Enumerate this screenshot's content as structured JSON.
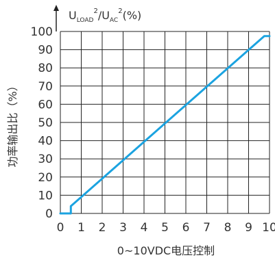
{
  "chart_data": {
    "type": "line",
    "title": "",
    "y_title_main": "功率输出比（%）",
    "y_title_top": {
      "u1": "U",
      "load": "LOAD",
      "sq1": "2",
      "slash_u": "/U",
      "ac": "AC",
      "sq2": "2",
      "pct": "(%)"
    },
    "xlabel": "0~10VDC电压控制",
    "xlim": [
      0,
      10
    ],
    "ylim": [
      0,
      100
    ],
    "x_ticks": [
      "0",
      "1",
      "2",
      "3",
      "4",
      "5",
      "6",
      "7",
      "8",
      "9",
      "10"
    ],
    "y_ticks": [
      "0",
      "10",
      "20",
      "30",
      "40",
      "50",
      "60",
      "70",
      "80",
      "90",
      "100"
    ],
    "grid": true,
    "line_color": "#1ba3e0",
    "series": [
      {
        "name": "",
        "x": [
          0,
          0.5,
          0.5,
          0.8,
          9.75,
          10
        ],
        "y": [
          0,
          0,
          4,
          7,
          97.5,
          97.5
        ]
      }
    ]
  }
}
